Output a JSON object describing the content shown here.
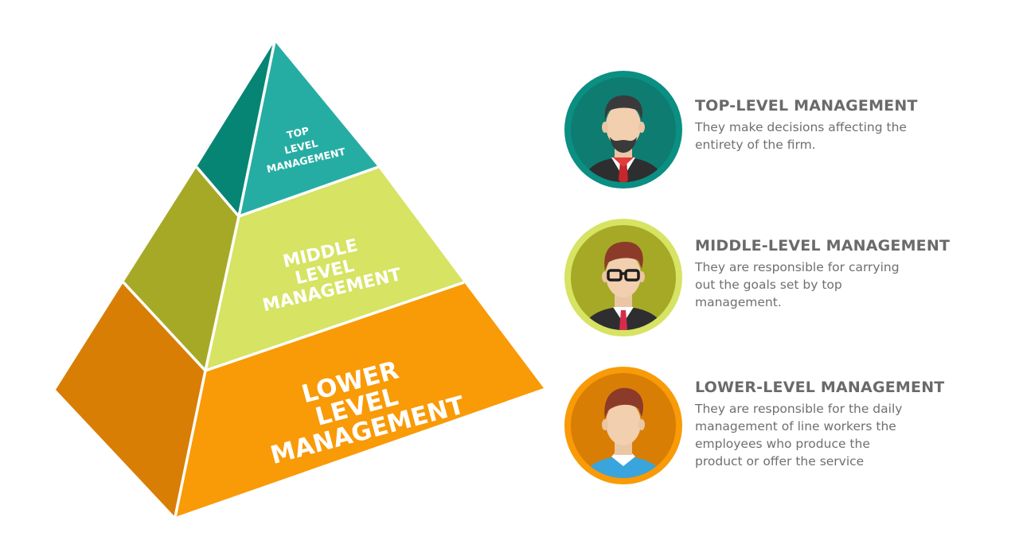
{
  "pyramid": {
    "tiers": [
      {
        "lines": [
          "TOP",
          "LEVEL",
          "MANAGEMENT"
        ],
        "front_color": "#26ada3",
        "side_color": "#068575"
      },
      {
        "lines": [
          "MIDDLE",
          "LEVEL",
          "MANAGEMENT"
        ],
        "front_color": "#d6e363",
        "side_color": "#a6a926"
      },
      {
        "lines": [
          "LOWER",
          "LEVEL",
          "MANAGEMENT"
        ],
        "front_color": "#f99a07",
        "side_color": "#d97e04"
      }
    ]
  },
  "descriptions": [
    {
      "title": "TOP-LEVEL MANAGEMENT",
      "lines": [
        "They make decisions affecting the",
        "entirety of the firm."
      ],
      "avatar": {
        "icon": "bearded-manager-avatar-icon",
        "ring_color": "#0a8f82",
        "bg_color": "#0e7c70"
      }
    },
    {
      "title": "MIDDLE-LEVEL MANAGEMENT",
      "lines": [
        "They are responsible for carrying",
        "out the goals set by top",
        "management."
      ],
      "avatar": {
        "icon": "glasses-manager-avatar-icon",
        "ring_color": "#d6e363",
        "bg_color": "#a6a926"
      }
    },
    {
      "title": "LOWER-LEVEL MANAGEMENT",
      "lines": [
        "They are responsible for the daily",
        "management of line workers the",
        "employees who produce the",
        "product or offer the service"
      ],
      "avatar": {
        "icon": "worker-avatar-icon",
        "ring_color": "#f99a07",
        "bg_color": "#d97e04"
      }
    }
  ]
}
